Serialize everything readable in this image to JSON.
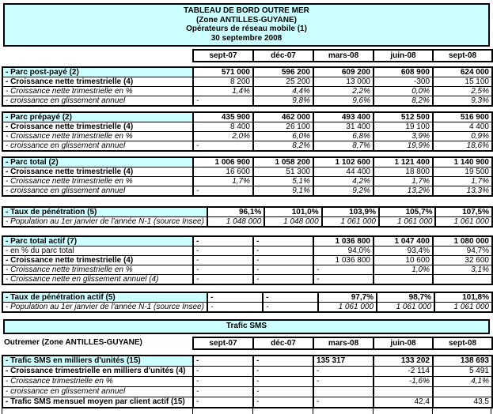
{
  "colors": {
    "accent_fill": "#CCFFFF",
    "border": "#000000",
    "text": "#000000",
    "background": "#FFFFFF"
  },
  "title_box": {
    "lines": [
      "TABLEAU DE BORD OUTRE MER",
      "(Zone ANTILLES-GUYANE)",
      "Opérateurs de réseau mobile (1)",
      "30 septembre 2008"
    ]
  },
  "column_headers": [
    "sept-07",
    "déc-07",
    "mars-08",
    "juin-08",
    "sept-08"
  ],
  "mobile_section": {
    "blocks": [
      {
        "name": "parc-post-paye",
        "rows": [
          {
            "label": "- Parc post-payé (2)",
            "label_style": "bold",
            "fill": true,
            "value_style": "bold",
            "values": [
              "571 000",
              "596 200",
              "609 200",
              "608 900",
              "624 000"
            ]
          },
          {
            "label": "- Croissance nette trimestrielle (4)",
            "label_style": "bold",
            "value_style": "plain",
            "values": [
              "8 200",
              "25 200",
              "13 000",
              "-300",
              "15 100"
            ]
          },
          {
            "label": "- Croissance nette trimestrielle en %",
            "label_style": "italic",
            "value_style": "italic",
            "values": [
              "1,4%",
              "4,4%",
              "2,2%",
              "0,0%",
              "2,5%"
            ]
          },
          {
            "label": "- croissance en glissement annuel",
            "label_style": "italic",
            "value_style": "italic",
            "values": [
              "-",
              "9,8%",
              "9,6%",
              "8,2%",
              "9,3%"
            ]
          }
        ]
      },
      {
        "name": "parc-prepaye",
        "rows": [
          {
            "label": "- Parc prépayé (2)",
            "label_style": "bold",
            "fill": true,
            "value_style": "bold",
            "values": [
              "435 900",
              "462 000",
              "493 400",
              "512 500",
              "516 900"
            ]
          },
          {
            "label": "- Croissance nette trimestrielle (4)",
            "label_style": "bold",
            "value_style": "plain",
            "values": [
              "8 400",
              "26 100",
              "31 400",
              "19 100",
              "4 400"
            ]
          },
          {
            "label": "- Croissance nette trimestrielle en %",
            "label_style": "italic",
            "value_style": "italic",
            "values": [
              "2,0%",
              "6,0%",
              "6,8%",
              "3,9%",
              "0,9%"
            ]
          },
          {
            "label": "- croissance en glissement annuel",
            "label_style": "italic",
            "value_style": "italic",
            "values": [
              "-",
              "8,2%",
              "8,7%",
              "19,9%",
              "18,6%"
            ]
          }
        ]
      },
      {
        "name": "parc-total",
        "rows": [
          {
            "label": "- Parc total (2)",
            "label_style": "bold",
            "fill": true,
            "value_style": "bold",
            "values": [
              "1 006 900",
              "1 058 200",
              "1 102 600",
              "1 121 400",
              "1 140 900"
            ]
          },
          {
            "label": "- Croissance nette trimestrielle (4)",
            "label_style": "bold",
            "value_style": "plain",
            "values": [
              "16 600",
              "51 300",
              "44 400",
              "18 800",
              "19 500"
            ]
          },
          {
            "label": "- Croissance nette trimestrielle en %",
            "label_style": "italic",
            "value_style": "italic",
            "values": [
              "1,7%",
              "5,1%",
              "4,2%",
              "1,7%",
              "1,7%"
            ]
          },
          {
            "label": "- croissance en glissement annuel",
            "label_style": "italic",
            "value_style": "italic",
            "values": [
              "-",
              "9,1%",
              "9,2%",
              "13,2%",
              "13,3%"
            ]
          }
        ]
      },
      {
        "name": "taux-penetration",
        "rows": [
          {
            "label": "- Taux de pénétration (5)",
            "label_style": "bold",
            "fill": true,
            "value_style": "bold",
            "values": [
              "96,1%",
              "101,0%",
              "103,9%",
              "105,7%",
              "107,5%"
            ]
          },
          {
            "label": "- Population au 1er janvier de l'année N-1 (source Insee)",
            "label_style": "italic",
            "value_style": "italic",
            "values": [
              "1 048 000",
              "1 048 000",
              "1 061 000",
              "1 061 000",
              "1 061 000"
            ]
          }
        ]
      },
      {
        "name": "parc-total-actif",
        "rows": [
          {
            "label": "- Parc total actif (7)",
            "label_style": "bold",
            "fill": true,
            "value_style": "bold",
            "values": [
              "-",
              "-",
              "1 036 800",
              "1 047 400",
              "1 080 000"
            ]
          },
          {
            "label": "- en % du parc total",
            "label_style": "plain",
            "value_style": "plain",
            "values": [
              "-",
              "-",
              "94,0%",
              "93,4%",
              "94,7%"
            ]
          },
          {
            "label": "- Croissance nette trimestrielle (4)",
            "label_style": "bold",
            "value_style": "plain",
            "values": [
              "-",
              "-",
              "1 036 800",
              "10 600",
              "32 600"
            ]
          },
          {
            "label": "- Croissance nette trimestrielle en %",
            "label_style": "italic",
            "value_style": "italic",
            "values": [
              "-",
              "-",
              "-",
              "1,0%",
              "3,1%"
            ]
          },
          {
            "label": "- Croissance nette en glissement annuel (4)",
            "label_style": "italic",
            "value_style": "italic",
            "values": [
              "-",
              "-",
              "-",
              "",
              ""
            ]
          }
        ]
      },
      {
        "name": "taux-penetration-actif",
        "rows": [
          {
            "label": "- Taux de pénétration actif (5)",
            "label_style": "bold",
            "fill": true,
            "value_style": "bold",
            "values": [
              "-",
              "-",
              "97,7%",
              "98,7%",
              "101,8%"
            ]
          },
          {
            "label": "- Population au 1er janvier de l'année N-1 (source Insee)",
            "label_style": "italic",
            "value_style": "italic",
            "values": [
              "-",
              "-",
              "1 061 000",
              "1 061 000",
              "1 061 000"
            ]
          }
        ]
      }
    ]
  },
  "sms_section": {
    "banner": "Trafic SMS",
    "row_header": "Outremer (Zone ANTILLES-GUYANE)",
    "blocks": [
      {
        "name": "trafic-sms",
        "rows": [
          {
            "label": "- Trafic SMS en milliers d'unités (15)",
            "label_style": "bold",
            "fill": true,
            "value_style": "bold",
            "values": [
              "-",
              "-",
              "135 317",
              "133 202",
              "138 693"
            ],
            "align": {
              "2": "left"
            }
          },
          {
            "label": "- Croissance trimestrielle en milliers d'unités (4)",
            "label_style": "bold",
            "value_style": "plain",
            "values": [
              "-",
              "-",
              "-",
              "-2 114",
              "5 491"
            ]
          },
          {
            "label": "- Croissance trimestrielle en %",
            "label_style": "italic",
            "value_style": "italic",
            "values": [
              "-",
              "-",
              "-",
              "-1,6%",
              "4,1%"
            ]
          },
          {
            "label": "- croissance en glissement annuel",
            "label_style": "italic",
            "value_style": "italic",
            "values": [
              "-",
              "-",
              "",
              "",
              ""
            ]
          },
          {
            "label": "- Trafic SMS mensuel moyen par client actif (15)",
            "label_style": "bold",
            "value_style": "plain",
            "values": [
              "-",
              "-",
              "-",
              "42,4",
              "43,5"
            ]
          }
        ]
      }
    ]
  }
}
